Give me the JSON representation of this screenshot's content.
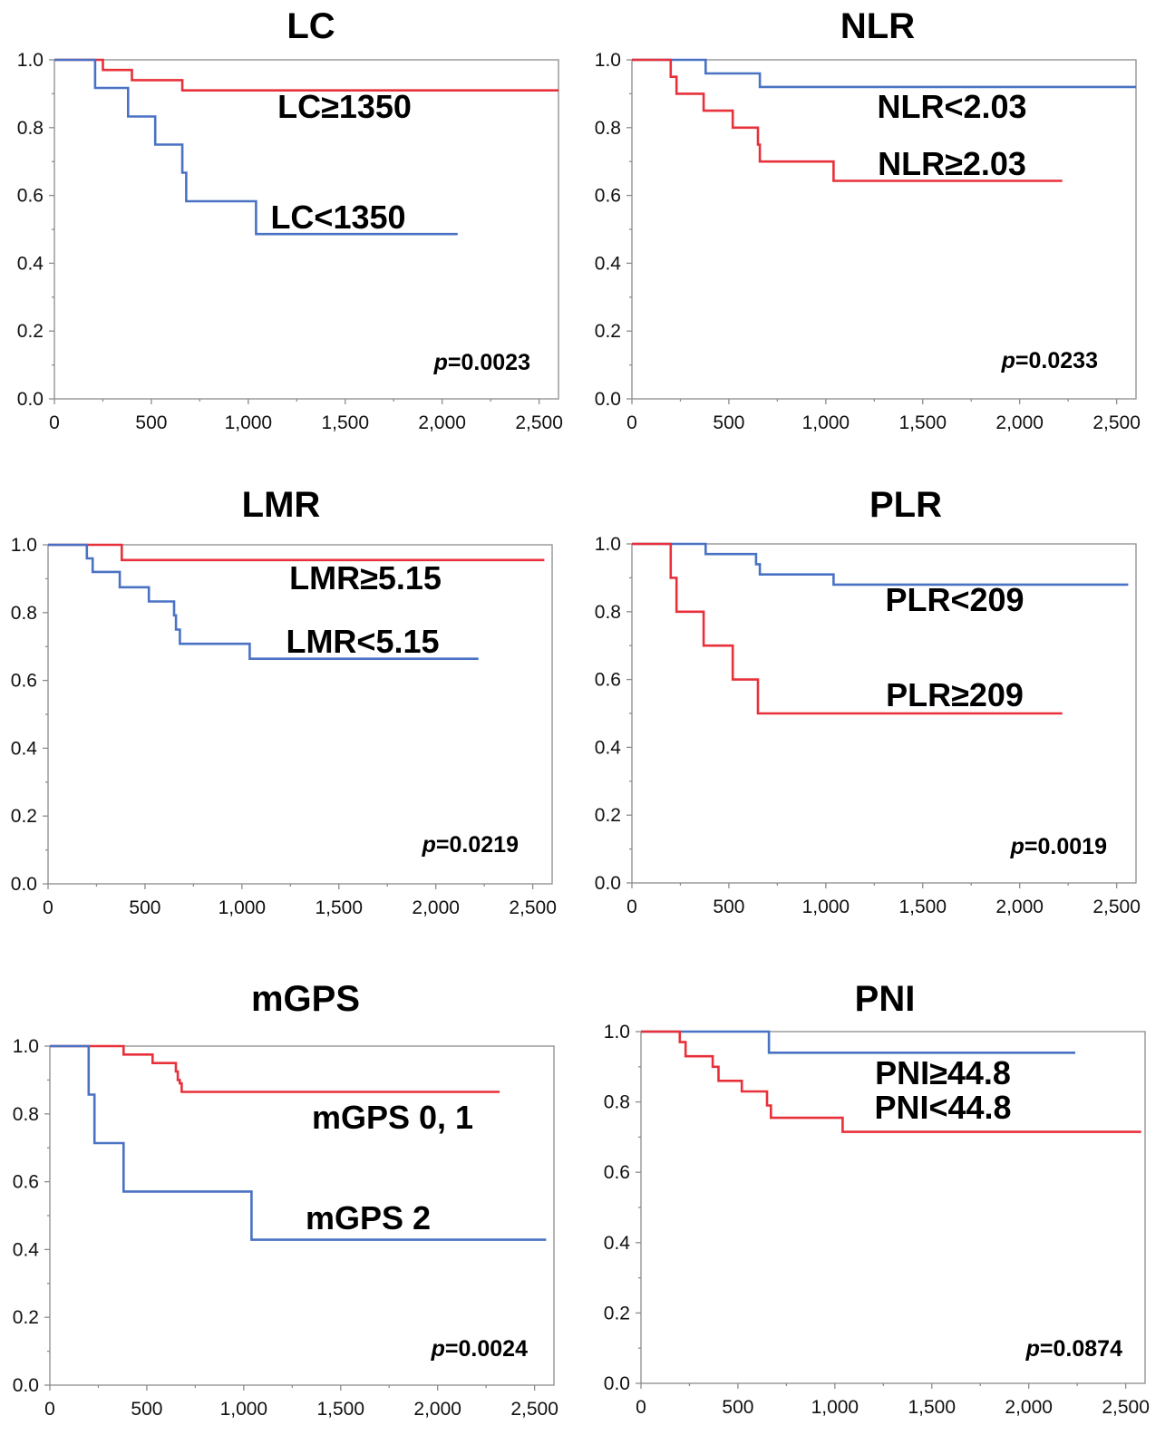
{
  "chart_data": [
    {
      "type": "line",
      "step": true,
      "title": "LC",
      "xlim": [
        0,
        2600
      ],
      "ylim": [
        0,
        1
      ],
      "xticks": [
        "0",
        "500",
        "1,000",
        "1,500",
        "2,000",
        "2,500"
      ],
      "yticks": [
        "0.0",
        "0.2",
        "0.4",
        "0.6",
        "0.8",
        "1.0"
      ],
      "p_prefix": "p",
      "p_value": "=0.0023",
      "series": [
        {
          "name": "LC≥1350",
          "color": "#e8303a",
          "x": [
            0,
            250,
            400,
            660,
            2600
          ],
          "y": [
            1.0,
            0.97,
            0.94,
            0.91,
            0.91
          ]
        },
        {
          "name": "LC<1350",
          "color": "#4a72c4",
          "x": [
            0,
            210,
            380,
            520,
            660,
            680,
            700,
            1040,
            2080
          ],
          "y": [
            1.0,
            0.917,
            0.833,
            0.75,
            0.667,
            0.583,
            0.583,
            0.486,
            0.486
          ]
        }
      ]
    },
    {
      "type": "line",
      "step": true,
      "title": "NLR",
      "xlim": [
        0,
        2600
      ],
      "ylim": [
        0,
        1
      ],
      "xticks": [
        "0",
        "500",
        "1,000",
        "1,500",
        "2,000",
        "2,500"
      ],
      "yticks": [
        "0.0",
        "0.2",
        "0.4",
        "0.6",
        "0.8",
        "1.0"
      ],
      "p_prefix": "p",
      "p_value": "=0.0233",
      "series": [
        {
          "name": "NLR<2.03",
          "color": "#4a72c4",
          "x": [
            0,
            380,
            660,
            2600
          ],
          "y": [
            1.0,
            0.96,
            0.92,
            0.92
          ]
        },
        {
          "name": "NLR≥2.03",
          "color": "#e8303a",
          "x": [
            0,
            200,
            230,
            370,
            520,
            650,
            660,
            1040,
            2220
          ],
          "y": [
            1.0,
            0.95,
            0.9,
            0.85,
            0.8,
            0.75,
            0.7,
            0.643,
            0.643
          ]
        }
      ]
    },
    {
      "type": "line",
      "step": true,
      "title": "LMR",
      "xlim": [
        0,
        2600
      ],
      "ylim": [
        0,
        1
      ],
      "xticks": [
        "0",
        "500",
        "1,000",
        "1,500",
        "2,000",
        "2,500"
      ],
      "yticks": [
        "0.0",
        "0.2",
        "0.4",
        "0.6",
        "0.8",
        "1.0"
      ],
      "p_prefix": "p",
      "p_value": "=0.0219",
      "series": [
        {
          "name": "LMR≥5.15",
          "color": "#e8303a",
          "x": [
            0,
            380,
            2560
          ],
          "y": [
            1.0,
            0.955,
            0.955
          ]
        },
        {
          "name": "LMR<5.15",
          "color": "#4a72c4",
          "x": [
            0,
            200,
            230,
            370,
            520,
            650,
            660,
            680,
            1040,
            2220
          ],
          "y": [
            1.0,
            0.96,
            0.92,
            0.875,
            0.833,
            0.792,
            0.75,
            0.708,
            0.664,
            0.664
          ]
        }
      ]
    },
    {
      "type": "line",
      "step": true,
      "title": "PLR",
      "xlim": [
        0,
        2600
      ],
      "ylim": [
        0,
        1
      ],
      "xticks": [
        "0",
        "500",
        "1,000",
        "1,500",
        "2,000",
        "2,500"
      ],
      "yticks": [
        "0.0",
        "0.2",
        "0.4",
        "0.6",
        "0.8",
        "1.0"
      ],
      "p_prefix": "p",
      "p_value": "=0.0019",
      "series": [
        {
          "name": "PLR<209",
          "color": "#4a72c4",
          "x": [
            0,
            380,
            640,
            660,
            1040,
            2560
          ],
          "y": [
            1.0,
            0.97,
            0.94,
            0.91,
            0.88,
            0.88
          ]
        },
        {
          "name": "PLR≥209",
          "color": "#e8303a",
          "x": [
            0,
            200,
            230,
            370,
            520,
            650,
            2220
          ],
          "y": [
            1.0,
            0.9,
            0.8,
            0.7,
            0.6,
            0.5,
            0.5
          ]
        }
      ]
    },
    {
      "type": "line",
      "step": true,
      "title": "mGPS",
      "xlim": [
        0,
        2600
      ],
      "ylim": [
        0,
        1
      ],
      "xticks": [
        "0",
        "500",
        "1,000",
        "1,500",
        "2,000",
        "2,500"
      ],
      "yticks": [
        "0.0",
        "0.2",
        "0.4",
        "0.6",
        "0.8",
        "1.0"
      ],
      "p_prefix": "p",
      "p_value": "=0.0024",
      "series": [
        {
          "name": "mGPS 0, 1",
          "color": "#e8303a",
          "x": [
            0,
            380,
            530,
            650,
            660,
            670,
            680,
            2320
          ],
          "y": [
            1.0,
            0.975,
            0.95,
            0.925,
            0.9,
            0.89,
            0.865,
            0.865
          ]
        },
        {
          "name": "mGPS 2",
          "color": "#4a72c4",
          "x": [
            0,
            200,
            230,
            380,
            1040,
            2560
          ],
          "y": [
            1.0,
            0.857,
            0.714,
            0.571,
            0.429,
            0.429
          ]
        }
      ]
    },
    {
      "type": "line",
      "step": true,
      "title": "PNI",
      "xlim": [
        0,
        2600
      ],
      "ylim": [
        0,
        1
      ],
      "xticks": [
        "0",
        "500",
        "1,000",
        "1,500",
        "2,000",
        "2,500"
      ],
      "yticks": [
        "0.0",
        "0.2",
        "0.4",
        "0.6",
        "0.8",
        "1.0"
      ],
      "p_prefix": "p",
      "p_value": "=0.0874",
      "series": [
        {
          "name": "PNI≥44.8",
          "color": "#4a72c4",
          "x": [
            0,
            660,
            2240
          ],
          "y": [
            1.0,
            0.94,
            0.94
          ]
        },
        {
          "name": "PNI<44.8",
          "color": "#e8303a",
          "x": [
            0,
            200,
            230,
            370,
            400,
            520,
            650,
            670,
            1040,
            2580
          ],
          "y": [
            1.0,
            0.97,
            0.93,
            0.9,
            0.86,
            0.83,
            0.79,
            0.755,
            0.715,
            0.715
          ]
        }
      ]
    }
  ]
}
